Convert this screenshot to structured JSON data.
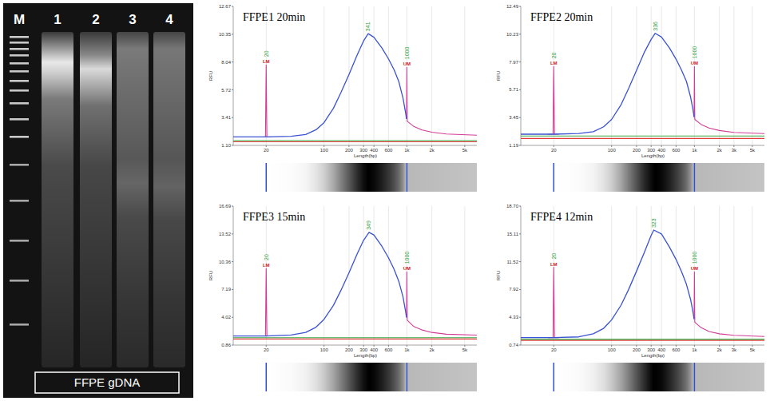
{
  "gel": {
    "lanes": [
      "M",
      "1",
      "2",
      "3",
      "4"
    ],
    "label": "FFPE gDNA"
  },
  "chart_data": [
    {
      "type": "line",
      "title": "FFPE1 20min",
      "x_label": "Length(bp)",
      "y_label": "RFU",
      "log": "x",
      "grid": true,
      "xlim": [
        8,
        7000
      ],
      "xticks": [
        20,
        100,
        200,
        300,
        400,
        600,
        {
          "value": 1000,
          "label": "1k"
        },
        {
          "value": 2000,
          "label": "2k"
        },
        {
          "value": 5000,
          "label": "5k"
        }
      ],
      "ylim": [
        1.1,
        12.67
      ],
      "yticks": [
        {
          "value": 1.1,
          "label": "1.10"
        },
        3.41,
        5.72,
        8.04,
        10.35,
        12.67
      ],
      "series": [
        {
          "color": "#3a52d4",
          "x": [
            8,
            20,
            40,
            60,
            80,
            100,
            130,
            160,
            200,
            250,
            300,
            341,
            400,
            500,
            600,
            700,
            800,
            900,
            960,
            990
          ],
          "values": [
            1.8,
            1.8,
            1.85,
            2.0,
            2.4,
            3.0,
            4.2,
            5.5,
            7.0,
            8.6,
            9.8,
            10.4,
            10.1,
            9.2,
            8.3,
            7.4,
            6.4,
            5.0,
            3.9,
            3.3
          ]
        },
        {
          "color": "#d23c96",
          "x": [
            17,
            19.6,
            20,
            20.4,
            23
          ],
          "values": [
            1.8,
            1.8,
            7.8,
            1.8,
            1.8
          ]
        },
        {
          "color": "#d23c96",
          "x": [
            990,
            1000,
            1010,
            1200,
            1500,
            2000,
            3000,
            7000
          ],
          "values": [
            3.3,
            7.6,
            3.1,
            2.7,
            2.4,
            2.2,
            2.05,
            1.95
          ]
        },
        {
          "color": "#39a845",
          "x": [
            8,
            7000
          ],
          "values": [
            1.5,
            1.5
          ]
        },
        {
          "color": "#e23a3a",
          "x": [
            8,
            7000
          ],
          "values": [
            1.4,
            1.4
          ]
        }
      ],
      "markers": [
        {
          "x": 20,
          "label": "LM"
        },
        {
          "x": 1000,
          "label": "UM"
        }
      ],
      "peak": {
        "x": 341
      }
    },
    {
      "type": "line",
      "title": "FFPE2 20min",
      "x_label": "Length(bp)",
      "y_label": "RFU",
      "log": "x",
      "grid": true,
      "xlim": [
        8,
        7000
      ],
      "xticks": [
        20,
        100,
        200,
        300,
        400,
        600,
        {
          "value": 1000,
          "label": "1k"
        },
        {
          "value": 2000,
          "label": "2k"
        },
        {
          "value": 3000,
          "label": "3k"
        },
        {
          "value": 5000,
          "label": "5k"
        }
      ],
      "ylim": [
        1.19,
        12.49
      ],
      "yticks": [
        1.19,
        3.45,
        5.71,
        7.97,
        10.23,
        12.49
      ],
      "series": [
        {
          "color": "#3a52d4",
          "x": [
            8,
            20,
            40,
            60,
            80,
            100,
            130,
            160,
            200,
            250,
            300,
            336,
            400,
            500,
            600,
            700,
            800,
            900,
            960,
            990
          ],
          "values": [
            2.1,
            2.1,
            2.15,
            2.3,
            2.7,
            3.3,
            4.5,
            5.8,
            7.3,
            8.8,
            9.8,
            10.3,
            10.0,
            9.1,
            8.2,
            7.3,
            6.4,
            5.1,
            4.1,
            3.5
          ]
        },
        {
          "color": "#d23c96",
          "x": [
            17,
            19.6,
            20,
            20.4,
            23
          ],
          "values": [
            2.1,
            2.1,
            7.6,
            2.1,
            2.1
          ]
        },
        {
          "color": "#d23c96",
          "x": [
            990,
            1000,
            1010,
            1200,
            1500,
            2000,
            3000,
            7000
          ],
          "values": [
            3.5,
            7.6,
            3.3,
            2.9,
            2.6,
            2.4,
            2.25,
            2.15
          ]
        },
        {
          "color": "#39a845",
          "x": [
            8,
            7000
          ],
          "values": [
            1.95,
            1.95
          ]
        },
        {
          "color": "#e23a3a",
          "x": [
            8,
            7000
          ],
          "values": [
            1.75,
            1.75
          ]
        }
      ],
      "markers": [
        {
          "x": 20,
          "label": "LM"
        },
        {
          "x": 1000,
          "label": "UM"
        }
      ],
      "peak": {
        "x": 336
      }
    },
    {
      "type": "line",
      "title": "FFPE3 15min",
      "x_label": "Length(bp)",
      "y_label": "RFU",
      "log": "x",
      "grid": true,
      "xlim": [
        8,
        7000
      ],
      "xticks": [
        20,
        100,
        200,
        300,
        400,
        600,
        {
          "value": 1000,
          "label": "1k"
        },
        {
          "value": 2000,
          "label": "2k"
        },
        {
          "value": 5000,
          "label": "5k"
        }
      ],
      "ylim": [
        0.86,
        16.69
      ],
      "yticks": [
        0.86,
        4.02,
        7.19,
        10.36,
        13.52,
        16.69
      ],
      "series": [
        {
          "color": "#3a52d4",
          "x": [
            8,
            20,
            40,
            60,
            80,
            100,
            130,
            160,
            200,
            250,
            300,
            349,
            400,
            500,
            600,
            700,
            800,
            900,
            960,
            990
          ],
          "values": [
            1.9,
            1.9,
            2.0,
            2.3,
            2.9,
            3.8,
            5.4,
            7.1,
            9.1,
            11.2,
            12.8,
            13.7,
            13.4,
            12.1,
            10.8,
            9.5,
            8.1,
            6.3,
            4.8,
            4.0
          ]
        },
        {
          "color": "#d23c96",
          "x": [
            17,
            19.6,
            20,
            20.4,
            23
          ],
          "values": [
            1.9,
            1.9,
            9.6,
            1.9,
            1.9
          ]
        },
        {
          "color": "#d23c96",
          "x": [
            990,
            1000,
            1010,
            1200,
            1500,
            2000,
            3000,
            7000
          ],
          "values": [
            4.0,
            9.2,
            3.7,
            3.0,
            2.6,
            2.3,
            2.1,
            2.0
          ]
        },
        {
          "color": "#39a845",
          "x": [
            8,
            7000
          ],
          "values": [
            1.7,
            1.7
          ]
        },
        {
          "color": "#e23a3a",
          "x": [
            8,
            7000
          ],
          "values": [
            1.55,
            1.55
          ]
        }
      ],
      "markers": [
        {
          "x": 20,
          "label": "LM"
        },
        {
          "x": 1000,
          "label": "UM"
        }
      ],
      "peak": {
        "x": 349
      }
    },
    {
      "type": "line",
      "title": "FFPE4 12min",
      "x_label": "Length(bp)",
      "y_label": "RFU",
      "log": "x",
      "grid": true,
      "xlim": [
        8,
        7000
      ],
      "xticks": [
        20,
        100,
        200,
        300,
        400,
        600,
        {
          "value": 1000,
          "label": "1k"
        },
        {
          "value": 2000,
          "label": "2k"
        },
        {
          "value": 3000,
          "label": "3k"
        },
        {
          "value": 5000,
          "label": "5k"
        }
      ],
      "ylim": [
        0.74,
        18.7
      ],
      "yticks": [
        0.74,
        4.33,
        7.92,
        11.52,
        15.11,
        {
          "value": 18.7,
          "label": "18.70"
        }
      ],
      "series": [
        {
          "color": "#3a52d4",
          "x": [
            8,
            20,
            40,
            60,
            80,
            100,
            130,
            160,
            200,
            250,
            300,
            323,
            400,
            500,
            600,
            700,
            800,
            900,
            960,
            990
          ],
          "values": [
            1.7,
            1.7,
            1.8,
            2.2,
            2.9,
            4.0,
            5.9,
            7.9,
            10.3,
            12.8,
            14.9,
            15.6,
            15.1,
            13.4,
            11.8,
            10.2,
            8.6,
            6.6,
            5.0,
            4.1
          ]
        },
        {
          "color": "#d23c96",
          "x": [
            17,
            19.6,
            20,
            20.4,
            23
          ],
          "values": [
            1.7,
            1.7,
            10.8,
            1.7,
            1.7
          ]
        },
        {
          "color": "#d23c96",
          "x": [
            990,
            1000,
            1010,
            1200,
            1500,
            2000,
            3000,
            7000
          ],
          "values": [
            4.1,
            10.2,
            3.7,
            3.0,
            2.5,
            2.2,
            2.0,
            1.85
          ]
        },
        {
          "color": "#39a845",
          "x": [
            8,
            7000
          ],
          "values": [
            1.5,
            1.5
          ]
        },
        {
          "color": "#e23a3a",
          "x": [
            8,
            7000
          ],
          "values": [
            1.35,
            1.35
          ]
        }
      ],
      "markers": [
        {
          "x": 20,
          "label": "LM"
        },
        {
          "x": 1000,
          "label": "UM"
        }
      ],
      "peak": {
        "x": 323
      }
    }
  ]
}
